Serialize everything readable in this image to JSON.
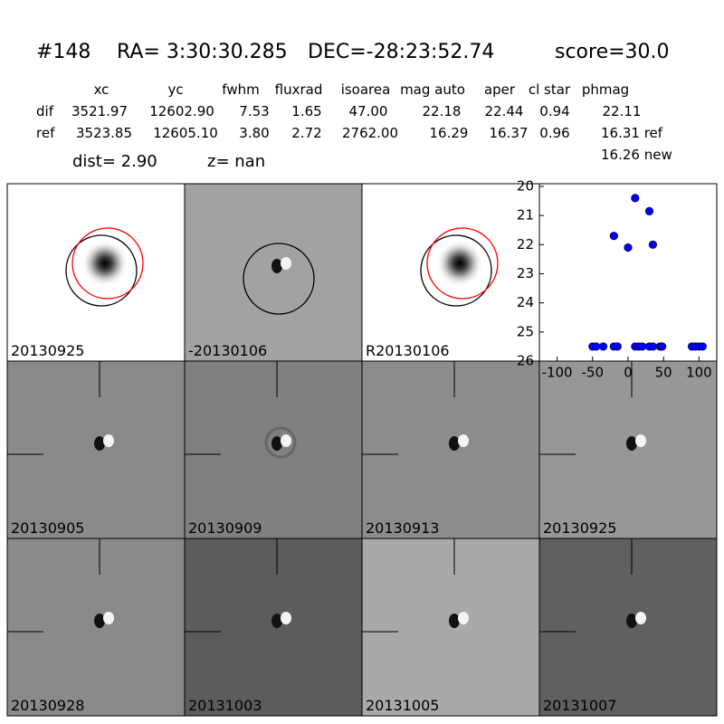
{
  "header": {
    "id": "#148",
    "ra": "RA= 3:30:30.285",
    "dec": "DEC=-28:23:52.74",
    "score": "score=30.0"
  },
  "table": {
    "columns": [
      "xc",
      "yc",
      "fwhm",
      "fluxrad",
      "isoarea",
      "mag auto",
      "aper",
      "cl star",
      "phmag"
    ],
    "rows": [
      {
        "label": "dif",
        "cells": [
          "3521.97",
          "12602.90",
          "7.53",
          "1.65",
          "47.00",
          "22.18",
          "22.44",
          "0.94",
          "22.11"
        ]
      },
      {
        "label": "ref",
        "cells": [
          "3523.85",
          "12605.10",
          "3.80",
          "2.72",
          "2762.00",
          "16.29",
          "16.37",
          "0.96",
          "16.31 ref"
        ]
      }
    ],
    "extra": "16.26 new",
    "dist": "dist=  2.90",
    "z": "z=   nan"
  },
  "panels": [
    {
      "label": "20130925"
    },
    {
      "label": "-20130106"
    },
    {
      "label": "R20130106"
    },
    {
      "label": "20130905"
    },
    {
      "label": "20130909"
    },
    {
      "label": "20130913"
    },
    {
      "label": "20130925",
      "color": "#ff0000"
    },
    {
      "label": "20130928"
    },
    {
      "label": "20131003"
    },
    {
      "label": "20131005"
    },
    {
      "label": "20131007"
    }
  ],
  "chart_data": {
    "type": "scatter",
    "color": "#0000ff",
    "x": [
      -20,
      0,
      10,
      30,
      35,
      -50,
      -45,
      -35,
      -20,
      -15,
      10,
      15,
      20,
      30,
      35,
      45,
      48,
      90,
      95,
      100,
      105
    ],
    "values": [
      21.7,
      22.1,
      20.4,
      20.85,
      22.0,
      25.5,
      25.5,
      25.5,
      25.5,
      25.5,
      25.5,
      25.5,
      25.5,
      25.5,
      25.5,
      25.5,
      25.5,
      25.5,
      25.5,
      25.5,
      25.5
    ],
    "xlim": [
      -125,
      125
    ],
    "xticks": [
      -100,
      -50,
      0,
      50,
      100
    ],
    "ylim": [
      26,
      20
    ],
    "yticks": [
      20,
      21,
      22,
      23,
      24,
      25,
      26
    ]
  }
}
